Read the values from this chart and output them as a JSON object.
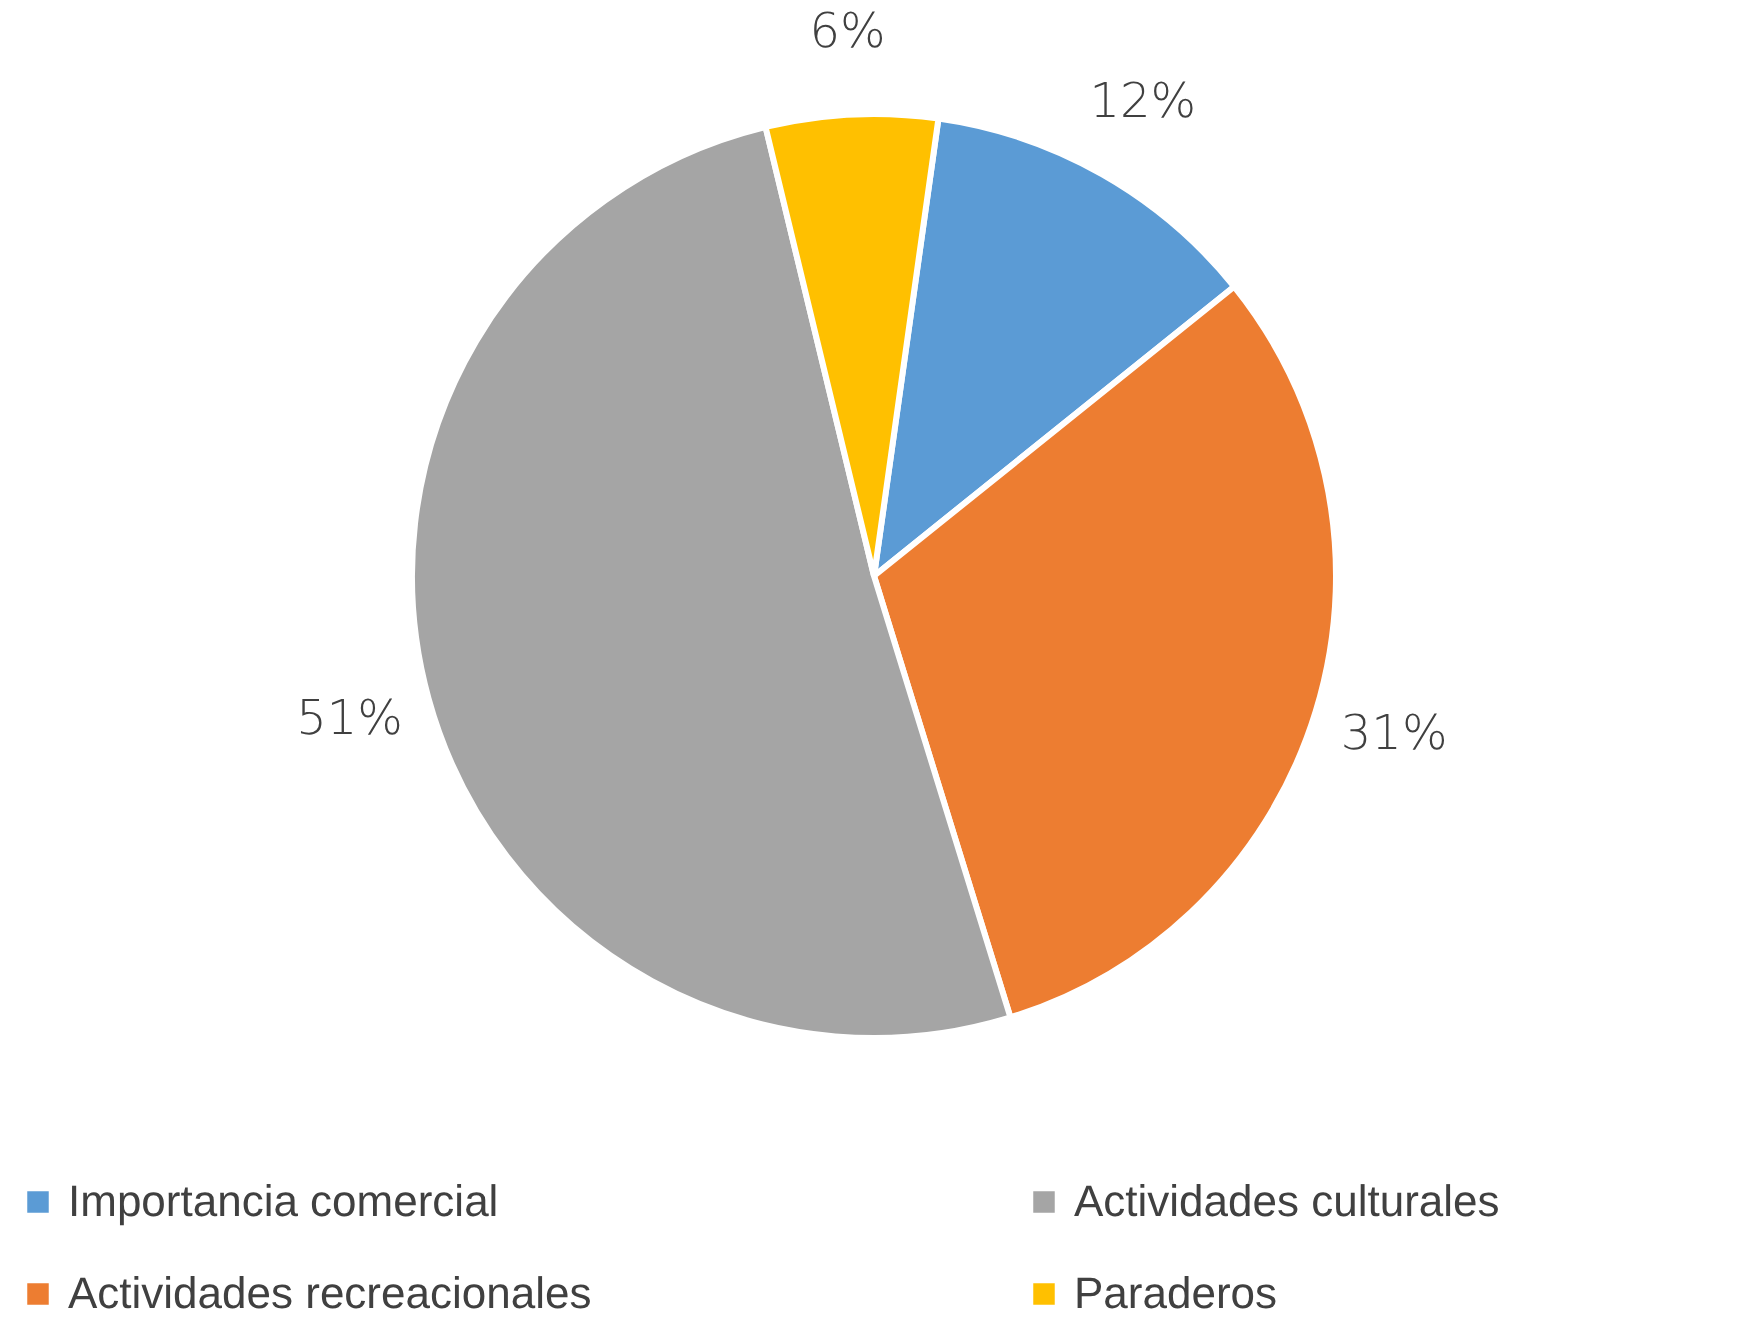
{
  "chart_data": {
    "type": "pie",
    "categories": [
      "Importancia comercial",
      "Actividades recreacionales",
      "Actividades culturales",
      "Paraderos"
    ],
    "values": [
      12,
      31,
      51,
      6
    ],
    "colors": [
      "#5b9bd5",
      "#ed7d31",
      "#a5a5a5",
      "#ffc000"
    ],
    "value_labels": [
      "12%",
      "31%",
      "51%",
      "6%"
    ],
    "legend": "bottom"
  }
}
